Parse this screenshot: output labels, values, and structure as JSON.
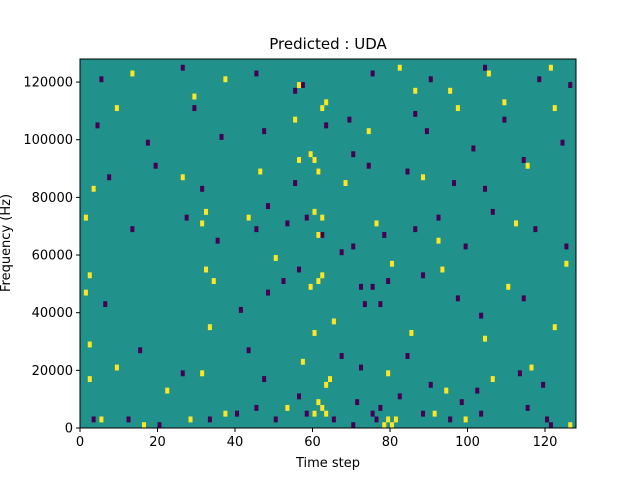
{
  "chart_data": {
    "type": "heatmap",
    "title": "Predicted : UDA",
    "xlabel": "Time step",
    "ylabel": "Frequency (Hz)",
    "x_ticks": [
      0,
      20,
      40,
      60,
      80,
      100,
      120
    ],
    "y_ticks": [
      0,
      20000,
      40000,
      60000,
      80000,
      100000,
      120000
    ],
    "xlim": [
      0,
      128
    ],
    "ylim": [
      0,
      128000
    ],
    "grid": false,
    "colormap": "viridis",
    "colors": {
      "background_class": "#21918c",
      "low_class": "#440154",
      "high_class": "#fde725"
    },
    "n_time_steps": 128,
    "n_frequency_bins": 64,
    "background_value": 0,
    "cells": [
      {
        "t": 3,
        "f": 1,
        "v": "low"
      },
      {
        "t": 12,
        "f": 1,
        "v": "low"
      },
      {
        "t": 20,
        "f": 0,
        "v": "low"
      },
      {
        "t": 33,
        "f": 1,
        "v": "low"
      },
      {
        "t": 40,
        "f": 2,
        "v": "low"
      },
      {
        "t": 45,
        "f": 3,
        "v": "low"
      },
      {
        "t": 50,
        "f": 1,
        "v": "low"
      },
      {
        "t": 58,
        "f": 2,
        "v": "low"
      },
      {
        "t": 65,
        "f": 1,
        "v": "low"
      },
      {
        "t": 70,
        "f": 0,
        "v": "low"
      },
      {
        "t": 71,
        "f": 4,
        "v": "low"
      },
      {
        "t": 75,
        "f": 2,
        "v": "low"
      },
      {
        "t": 76,
        "f": 1,
        "v": "low"
      },
      {
        "t": 77,
        "f": 3,
        "v": "low"
      },
      {
        "t": 82,
        "f": 5,
        "v": "low"
      },
      {
        "t": 88,
        "f": 2,
        "v": "low"
      },
      {
        "t": 95,
        "f": 1,
        "v": "low"
      },
      {
        "t": 98,
        "f": 4,
        "v": "low"
      },
      {
        "t": 103,
        "f": 2,
        "v": "low"
      },
      {
        "t": 115,
        "f": 3,
        "v": "low"
      },
      {
        "t": 120,
        "f": 1,
        "v": "low"
      },
      {
        "t": 121,
        "f": 0,
        "v": "low"
      },
      {
        "t": 15,
        "f": 13,
        "v": "low"
      },
      {
        "t": 26,
        "f": 9,
        "v": "low"
      },
      {
        "t": 43,
        "f": 13,
        "v": "low"
      },
      {
        "t": 47,
        "f": 8,
        "v": "low"
      },
      {
        "t": 56,
        "f": 5,
        "v": "low"
      },
      {
        "t": 67,
        "f": 12,
        "v": "low"
      },
      {
        "t": 72,
        "f": 10,
        "v": "low"
      },
      {
        "t": 84,
        "f": 12,
        "v": "low"
      },
      {
        "t": 90,
        "f": 7,
        "v": "low"
      },
      {
        "t": 102,
        "f": 6,
        "v": "low"
      },
      {
        "t": 113,
        "f": 9,
        "v": "low"
      },
      {
        "t": 119,
        "f": 7,
        "v": "low"
      },
      {
        "t": 6,
        "f": 21,
        "v": "low"
      },
      {
        "t": 41,
        "f": 20,
        "v": "low"
      },
      {
        "t": 48,
        "f": 23,
        "v": "low"
      },
      {
        "t": 52,
        "f": 25,
        "v": "low"
      },
      {
        "t": 56,
        "f": 27,
        "v": "low"
      },
      {
        "t": 72,
        "f": 24,
        "v": "low"
      },
      {
        "t": 73,
        "f": 21,
        "v": "low"
      },
      {
        "t": 75,
        "f": 24,
        "v": "low"
      },
      {
        "t": 77,
        "f": 21,
        "v": "low"
      },
      {
        "t": 79,
        "f": 25,
        "v": "low"
      },
      {
        "t": 88,
        "f": 26,
        "v": "low"
      },
      {
        "t": 97,
        "f": 22,
        "v": "low"
      },
      {
        "t": 103,
        "f": 19,
        "v": "low"
      },
      {
        "t": 114,
        "f": 22,
        "v": "low"
      },
      {
        "t": 13,
        "f": 34,
        "v": "low"
      },
      {
        "t": 27,
        "f": 36,
        "v": "low"
      },
      {
        "t": 35,
        "f": 32,
        "v": "low"
      },
      {
        "t": 45,
        "f": 34,
        "v": "low"
      },
      {
        "t": 48,
        "f": 38,
        "v": "low"
      },
      {
        "t": 53,
        "f": 35,
        "v": "low"
      },
      {
        "t": 58,
        "f": 36,
        "v": "low"
      },
      {
        "t": 62,
        "f": 33,
        "v": "low"
      },
      {
        "t": 67,
        "f": 30,
        "v": "low"
      },
      {
        "t": 70,
        "f": 31,
        "v": "low"
      },
      {
        "t": 78,
        "f": 33,
        "v": "low"
      },
      {
        "t": 86,
        "f": 34,
        "v": "low"
      },
      {
        "t": 92,
        "f": 36,
        "v": "low"
      },
      {
        "t": 99,
        "f": 31,
        "v": "low"
      },
      {
        "t": 106,
        "f": 37,
        "v": "low"
      },
      {
        "t": 117,
        "f": 34,
        "v": "low"
      },
      {
        "t": 125,
        "f": 31,
        "v": "low"
      },
      {
        "t": 7,
        "f": 43,
        "v": "low"
      },
      {
        "t": 19,
        "f": 45,
        "v": "low"
      },
      {
        "t": 31,
        "f": 41,
        "v": "low"
      },
      {
        "t": 55,
        "f": 42,
        "v": "low"
      },
      {
        "t": 61,
        "f": 44,
        "v": "low"
      },
      {
        "t": 70,
        "f": 47,
        "v": "low"
      },
      {
        "t": 74,
        "f": 45,
        "v": "low"
      },
      {
        "t": 84,
        "f": 44,
        "v": "low"
      },
      {
        "t": 96,
        "f": 42,
        "v": "low"
      },
      {
        "t": 104,
        "f": 41,
        "v": "low"
      },
      {
        "t": 114,
        "f": 46,
        "v": "low"
      },
      {
        "t": 4,
        "f": 52,
        "v": "low"
      },
      {
        "t": 17,
        "f": 49,
        "v": "low"
      },
      {
        "t": 29,
        "f": 55,
        "v": "low"
      },
      {
        "t": 36,
        "f": 50,
        "v": "low"
      },
      {
        "t": 47,
        "f": 51,
        "v": "low"
      },
      {
        "t": 55,
        "f": 58,
        "v": "low"
      },
      {
        "t": 63,
        "f": 52,
        "v": "low"
      },
      {
        "t": 69,
        "f": 53,
        "v": "low"
      },
      {
        "t": 86,
        "f": 54,
        "v": "low"
      },
      {
        "t": 89,
        "f": 51,
        "v": "low"
      },
      {
        "t": 101,
        "f": 48,
        "v": "low"
      },
      {
        "t": 109,
        "f": 53,
        "v": "low"
      },
      {
        "t": 124,
        "f": 49,
        "v": "low"
      },
      {
        "t": 5,
        "f": 60,
        "v": "low"
      },
      {
        "t": 26,
        "f": 62,
        "v": "low"
      },
      {
        "t": 45,
        "f": 61,
        "v": "low"
      },
      {
        "t": 57,
        "f": 59,
        "v": "low"
      },
      {
        "t": 75,
        "f": 61,
        "v": "low"
      },
      {
        "t": 90,
        "f": 60,
        "v": "low"
      },
      {
        "t": 104,
        "f": 62,
        "v": "low"
      },
      {
        "t": 118,
        "f": 60,
        "v": "low"
      },
      {
        "t": 126,
        "f": 59,
        "v": "low"
      },
      {
        "t": 5,
        "f": 1,
        "v": "high"
      },
      {
        "t": 16,
        "f": 0,
        "v": "high"
      },
      {
        "t": 28,
        "f": 1,
        "v": "high"
      },
      {
        "t": 37,
        "f": 2,
        "v": "high"
      },
      {
        "t": 53,
        "f": 3,
        "v": "high"
      },
      {
        "t": 60,
        "f": 2,
        "v": "high"
      },
      {
        "t": 61,
        "f": 4,
        "v": "high"
      },
      {
        "t": 62,
        "f": 3,
        "v": "high"
      },
      {
        "t": 63,
        "f": 2,
        "v": "high"
      },
      {
        "t": 78,
        "f": 0,
        "v": "high"
      },
      {
        "t": 79,
        "f": 1,
        "v": "high"
      },
      {
        "t": 80,
        "f": 0,
        "v": "high"
      },
      {
        "t": 81,
        "f": 1,
        "v": "high"
      },
      {
        "t": 91,
        "f": 2,
        "v": "high"
      },
      {
        "t": 99,
        "f": 1,
        "v": "high"
      },
      {
        "t": 126,
        "f": 0,
        "v": "high"
      },
      {
        "t": 2,
        "f": 8,
        "v": "high"
      },
      {
        "t": 9,
        "f": 10,
        "v": "high"
      },
      {
        "t": 22,
        "f": 6,
        "v": "high"
      },
      {
        "t": 31,
        "f": 9,
        "v": "high"
      },
      {
        "t": 57,
        "f": 11,
        "v": "high"
      },
      {
        "t": 63,
        "f": 7,
        "v": "high"
      },
      {
        "t": 64,
        "f": 8,
        "v": "high"
      },
      {
        "t": 79,
        "f": 9,
        "v": "high"
      },
      {
        "t": 94,
        "f": 6,
        "v": "high"
      },
      {
        "t": 106,
        "f": 8,
        "v": "high"
      },
      {
        "t": 116,
        "f": 10,
        "v": "high"
      },
      {
        "t": 2,
        "f": 14,
        "v": "high"
      },
      {
        "t": 33,
        "f": 17,
        "v": "high"
      },
      {
        "t": 60,
        "f": 16,
        "v": "high"
      },
      {
        "t": 65,
        "f": 18,
        "v": "high"
      },
      {
        "t": 85,
        "f": 16,
        "v": "high"
      },
      {
        "t": 104,
        "f": 15,
        "v": "high"
      },
      {
        "t": 122,
        "f": 17,
        "v": "high"
      },
      {
        "t": 1,
        "f": 23,
        "v": "high"
      },
      {
        "t": 2,
        "f": 26,
        "v": "high"
      },
      {
        "t": 32,
        "f": 27,
        "v": "high"
      },
      {
        "t": 34,
        "f": 25,
        "v": "high"
      },
      {
        "t": 50,
        "f": 29,
        "v": "high"
      },
      {
        "t": 59,
        "f": 24,
        "v": "high"
      },
      {
        "t": 61,
        "f": 25,
        "v": "high"
      },
      {
        "t": 62,
        "f": 26,
        "v": "high"
      },
      {
        "t": 80,
        "f": 28,
        "v": "high"
      },
      {
        "t": 93,
        "f": 27,
        "v": "high"
      },
      {
        "t": 110,
        "f": 24,
        "v": "high"
      },
      {
        "t": 125,
        "f": 28,
        "v": "high"
      },
      {
        "t": 1,
        "f": 36,
        "v": "high"
      },
      {
        "t": 31,
        "f": 35,
        "v": "high"
      },
      {
        "t": 32,
        "f": 37,
        "v": "high"
      },
      {
        "t": 43,
        "f": 36,
        "v": "high"
      },
      {
        "t": 60,
        "f": 37,
        "v": "high"
      },
      {
        "t": 61,
        "f": 33,
        "v": "high"
      },
      {
        "t": 62,
        "f": 36,
        "v": "high"
      },
      {
        "t": 76,
        "f": 35,
        "v": "high"
      },
      {
        "t": 92,
        "f": 32,
        "v": "high"
      },
      {
        "t": 112,
        "f": 35,
        "v": "high"
      },
      {
        "t": 3,
        "f": 41,
        "v": "high"
      },
      {
        "t": 26,
        "f": 43,
        "v": "high"
      },
      {
        "t": 46,
        "f": 44,
        "v": "high"
      },
      {
        "t": 56,
        "f": 46,
        "v": "high"
      },
      {
        "t": 59,
        "f": 47,
        "v": "high"
      },
      {
        "t": 60,
        "f": 46,
        "v": "high"
      },
      {
        "t": 61,
        "f": 44,
        "v": "high"
      },
      {
        "t": 68,
        "f": 42,
        "v": "high"
      },
      {
        "t": 88,
        "f": 43,
        "v": "high"
      },
      {
        "t": 115,
        "f": 45,
        "v": "high"
      },
      {
        "t": 9,
        "f": 55,
        "v": "high"
      },
      {
        "t": 29,
        "f": 57,
        "v": "high"
      },
      {
        "t": 55,
        "f": 53,
        "v": "high"
      },
      {
        "t": 62,
        "f": 55,
        "v": "high"
      },
      {
        "t": 63,
        "f": 56,
        "v": "high"
      },
      {
        "t": 74,
        "f": 51,
        "v": "high"
      },
      {
        "t": 86,
        "f": 58,
        "v": "high"
      },
      {
        "t": 97,
        "f": 55,
        "v": "high"
      },
      {
        "t": 109,
        "f": 56,
        "v": "high"
      },
      {
        "t": 122,
        "f": 55,
        "v": "high"
      },
      {
        "t": 13,
        "f": 61,
        "v": "high"
      },
      {
        "t": 37,
        "f": 60,
        "v": "high"
      },
      {
        "t": 56,
        "f": 59,
        "v": "high"
      },
      {
        "t": 82,
        "f": 62,
        "v": "high"
      },
      {
        "t": 95,
        "f": 58,
        "v": "high"
      },
      {
        "t": 105,
        "f": 61,
        "v": "high"
      },
      {
        "t": 121,
        "f": 62,
        "v": "high"
      }
    ]
  }
}
